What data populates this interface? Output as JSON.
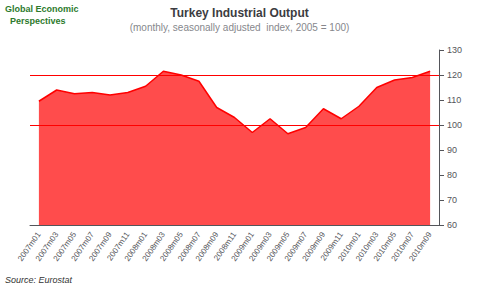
{
  "chart_data": {
    "type": "line",
    "title": "Turkey Industrial Output",
    "subtitle": "(monthly, seasonally adjusted  index, 2005 = 100)",
    "annotations": [
      "Global Economic",
      "  Perspectives",
      "Source: Eurostat"
    ],
    "categories": [
      "2007m01",
      "2007m03",
      "2007m05",
      "2007m07",
      "2007m09",
      "2007m11",
      "2008m01",
      "2008m03",
      "2008m05",
      "2008m07",
      "2008m09",
      "2008m11",
      "2009m01",
      "2009m03",
      "2009m05",
      "2009m07",
      "2009m09",
      "2009m11",
      "2010m01",
      "2010m03",
      "2010m05",
      "2010m07",
      "2010m09"
    ],
    "values": [
      109.5,
      114.0,
      112.5,
      113.0,
      112.0,
      113.0,
      115.5,
      121.5,
      120.0,
      117.5,
      107.0,
      103.0,
      97.0,
      102.5,
      96.5,
      99.0,
      106.5,
      102.5,
      107.5,
      115.0,
      118.0,
      119.0,
      121.5
    ],
    "color": "#ff0000",
    "ylim": [
      60,
      130
    ],
    "yticks": [
      60,
      70,
      80,
      90,
      100,
      110,
      120,
      130
    ],
    "reference_lines": [
      100,
      120
    ],
    "grid": false
  }
}
